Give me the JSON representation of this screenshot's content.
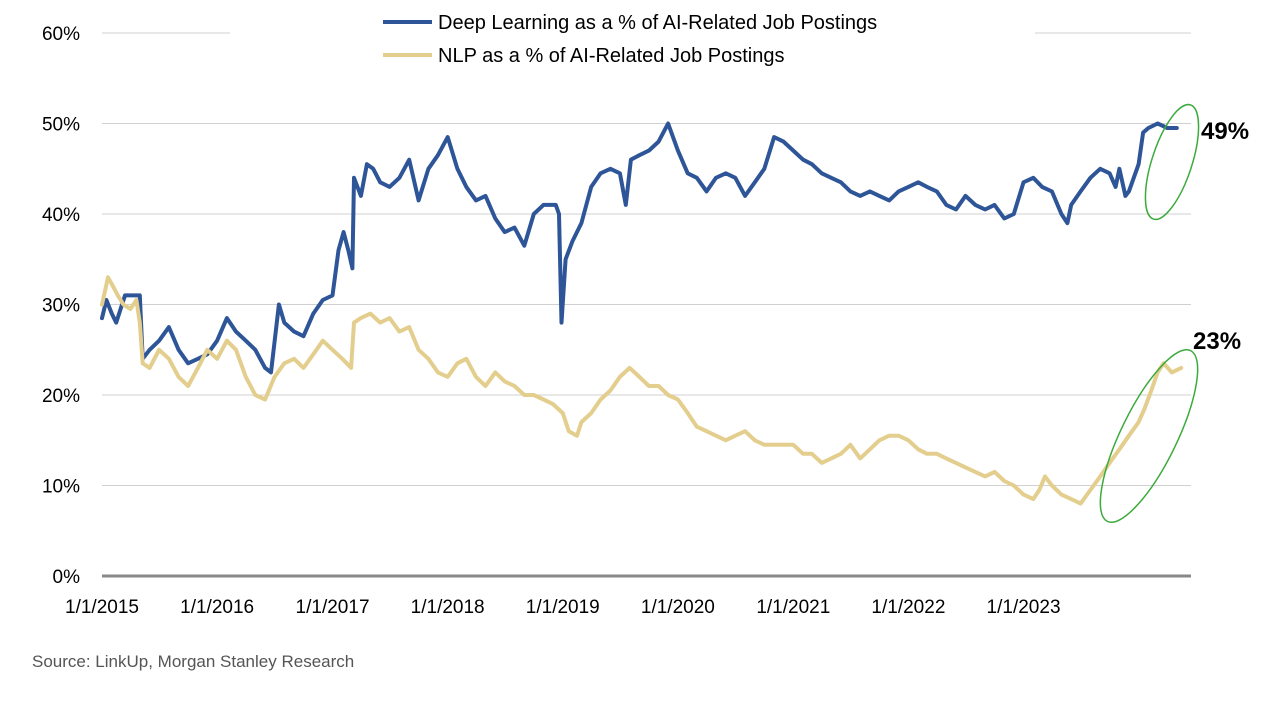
{
  "chart_data": {
    "type": "line",
    "title": "",
    "xlabel": "",
    "ylabel": "",
    "ylim": [
      0,
      60
    ],
    "y_ticks": [
      0,
      10,
      20,
      30,
      40,
      50,
      60
    ],
    "y_tick_labels": [
      "0%",
      "10%",
      "20%",
      "30%",
      "40%",
      "50%",
      "60%"
    ],
    "x_range": [
      "2015-01-01",
      "2024-06-15"
    ],
    "x_tick_labels": [
      "1/1/2015",
      "1/1/2016",
      "1/1/2017",
      "1/1/2018",
      "1/1/2019",
      "1/1/2020",
      "1/1/2021",
      "1/1/2022",
      "1/1/2023"
    ],
    "grid": true,
    "legend_position": "top",
    "series": [
      {
        "name": "Deep Learning as a % of AI-Related Job Postings",
        "color": "#2E5597",
        "points": [
          [
            "2015-01-01",
            28.5
          ],
          [
            "2015-01-15",
            30.5
          ],
          [
            "2015-02-01",
            29
          ],
          [
            "2015-02-15",
            28
          ],
          [
            "2015-03-01",
            29.5
          ],
          [
            "2015-03-15",
            31
          ],
          [
            "2015-04-01",
            31
          ],
          [
            "2015-04-15",
            31
          ],
          [
            "2015-05-01",
            31
          ],
          [
            "2015-05-10",
            24
          ],
          [
            "2015-06-01",
            25
          ],
          [
            "2015-07-01",
            26
          ],
          [
            "2015-08-01",
            27.5
          ],
          [
            "2015-09-01",
            25
          ],
          [
            "2015-10-01",
            23.5
          ],
          [
            "2015-11-01",
            24
          ],
          [
            "2015-12-01",
            24.5
          ],
          [
            "2016-01-01",
            26
          ],
          [
            "2016-02-01",
            28.5
          ],
          [
            "2016-03-01",
            27
          ],
          [
            "2016-04-01",
            26
          ],
          [
            "2016-05-01",
            25
          ],
          [
            "2016-06-01",
            23
          ],
          [
            "2016-06-20",
            22.5
          ],
          [
            "2016-07-15",
            30
          ],
          [
            "2016-08-01",
            28
          ],
          [
            "2016-09-01",
            27
          ],
          [
            "2016-10-01",
            26.5
          ],
          [
            "2016-11-01",
            29
          ],
          [
            "2016-12-01",
            30.5
          ],
          [
            "2017-01-01",
            31
          ],
          [
            "2017-01-20",
            36
          ],
          [
            "2017-02-05",
            38
          ],
          [
            "2017-02-20",
            36
          ],
          [
            "2017-03-05",
            34
          ],
          [
            "2017-03-10",
            44
          ],
          [
            "2017-04-01",
            42
          ],
          [
            "2017-04-20",
            45.5
          ],
          [
            "2017-05-10",
            45
          ],
          [
            "2017-06-01",
            43.5
          ],
          [
            "2017-07-01",
            43
          ],
          [
            "2017-08-01",
            44
          ],
          [
            "2017-09-01",
            46
          ],
          [
            "2017-10-01",
            41.5
          ],
          [
            "2017-11-01",
            45
          ],
          [
            "2017-12-01",
            46.5
          ],
          [
            "2018-01-01",
            48.5
          ],
          [
            "2018-02-01",
            45
          ],
          [
            "2018-03-01",
            43
          ],
          [
            "2018-04-01",
            41.5
          ],
          [
            "2018-05-01",
            42
          ],
          [
            "2018-06-01",
            39.5
          ],
          [
            "2018-07-01",
            38
          ],
          [
            "2018-08-01",
            38.5
          ],
          [
            "2018-09-01",
            36.5
          ],
          [
            "2018-10-01",
            40
          ],
          [
            "2018-11-01",
            41
          ],
          [
            "2018-12-10",
            41
          ],
          [
            "2018-12-20",
            40
          ],
          [
            "2018-12-28",
            28
          ],
          [
            "2019-01-10",
            35
          ],
          [
            "2019-02-01",
            37
          ],
          [
            "2019-03-01",
            39
          ],
          [
            "2019-04-01",
            43
          ],
          [
            "2019-05-01",
            44.5
          ],
          [
            "2019-06-01",
            45
          ],
          [
            "2019-07-01",
            44.5
          ],
          [
            "2019-07-20",
            41
          ],
          [
            "2019-08-05",
            46
          ],
          [
            "2019-09-01",
            46.5
          ],
          [
            "2019-10-01",
            47
          ],
          [
            "2019-11-01",
            48
          ],
          [
            "2019-12-01",
            50
          ],
          [
            "2020-01-01",
            47
          ],
          [
            "2020-02-01",
            44.5
          ],
          [
            "2020-03-01",
            44
          ],
          [
            "2020-04-01",
            42.5
          ],
          [
            "2020-05-01",
            44
          ],
          [
            "2020-06-01",
            44.5
          ],
          [
            "2020-07-01",
            44
          ],
          [
            "2020-08-01",
            42
          ],
          [
            "2020-09-01",
            43.5
          ],
          [
            "2020-10-01",
            45
          ],
          [
            "2020-11-01",
            48.5
          ],
          [
            "2020-12-01",
            48
          ],
          [
            "2021-01-01",
            47
          ],
          [
            "2021-02-01",
            46
          ],
          [
            "2021-03-01",
            45.5
          ],
          [
            "2021-04-01",
            44.5
          ],
          [
            "2021-05-01",
            44
          ],
          [
            "2021-06-01",
            43.5
          ],
          [
            "2021-07-01",
            42.5
          ],
          [
            "2021-08-01",
            42
          ],
          [
            "2021-09-01",
            42.5
          ],
          [
            "2021-10-01",
            42
          ],
          [
            "2021-11-01",
            41.5
          ],
          [
            "2021-12-01",
            42.5
          ],
          [
            "2022-01-01",
            43
          ],
          [
            "2022-02-01",
            43.5
          ],
          [
            "2022-03-01",
            43
          ],
          [
            "2022-04-01",
            42.5
          ],
          [
            "2022-05-01",
            41
          ],
          [
            "2022-06-01",
            40.5
          ],
          [
            "2022-07-01",
            42
          ],
          [
            "2022-08-01",
            41
          ],
          [
            "2022-09-01",
            40.5
          ],
          [
            "2022-10-01",
            41
          ],
          [
            "2022-11-01",
            39.5
          ],
          [
            "2022-12-01",
            40
          ],
          [
            "2023-01-01",
            43.5
          ],
          [
            "2023-02-01",
            44
          ],
          [
            "2023-03-01",
            43
          ],
          [
            "2023-04-01",
            42.5
          ],
          [
            "2023-05-01",
            40
          ],
          [
            "2023-05-20",
            39
          ],
          [
            "2023-06-01",
            41
          ],
          [
            "2023-07-01",
            42.5
          ],
          [
            "2023-08-01",
            44
          ],
          [
            "2023-09-01",
            45
          ],
          [
            "2023-10-01",
            44.5
          ],
          [
            "2023-10-20",
            43
          ],
          [
            "2023-11-01",
            45
          ],
          [
            "2023-11-20",
            42
          ],
          [
            "2023-12-01",
            42.5
          ],
          [
            "2024-01-01",
            45.5
          ],
          [
            "2024-01-15",
            49
          ],
          [
            "2024-02-01",
            49.5
          ],
          [
            "2024-03-01",
            50
          ],
          [
            "2024-04-01",
            49.5
          ],
          [
            "2024-05-01",
            49.5
          ]
        ]
      },
      {
        "name": "NLP as a % of AI-Related Job Postings",
        "color": "#E3CE8E",
        "points": [
          [
            "2015-01-01",
            30
          ],
          [
            "2015-01-20",
            33
          ],
          [
            "2015-02-05",
            32
          ],
          [
            "2015-02-20",
            31
          ],
          [
            "2015-03-10",
            30
          ],
          [
            "2015-04-01",
            29.5
          ],
          [
            "2015-04-20",
            30.5
          ],
          [
            "2015-05-01",
            28
          ],
          [
            "2015-05-10",
            23.5
          ],
          [
            "2015-06-01",
            23
          ],
          [
            "2015-07-01",
            25
          ],
          [
            "2015-08-01",
            24
          ],
          [
            "2015-09-01",
            22
          ],
          [
            "2015-10-01",
            21
          ],
          [
            "2015-11-01",
            23
          ],
          [
            "2015-12-01",
            25
          ],
          [
            "2016-01-01",
            24
          ],
          [
            "2016-02-01",
            26
          ],
          [
            "2016-03-01",
            25
          ],
          [
            "2016-04-01",
            22
          ],
          [
            "2016-05-01",
            20
          ],
          [
            "2016-06-01",
            19.5
          ],
          [
            "2016-07-01",
            22
          ],
          [
            "2016-08-01",
            23.5
          ],
          [
            "2016-09-01",
            24
          ],
          [
            "2016-10-01",
            23
          ],
          [
            "2016-11-01",
            24.5
          ],
          [
            "2016-12-01",
            26
          ],
          [
            "2017-01-01",
            25
          ],
          [
            "2017-02-01",
            24
          ],
          [
            "2017-03-01",
            23
          ],
          [
            "2017-03-10",
            28
          ],
          [
            "2017-04-01",
            28.5
          ],
          [
            "2017-05-01",
            29
          ],
          [
            "2017-06-01",
            28
          ],
          [
            "2017-07-01",
            28.5
          ],
          [
            "2017-08-01",
            27
          ],
          [
            "2017-09-01",
            27.5
          ],
          [
            "2017-10-01",
            25
          ],
          [
            "2017-11-01",
            24
          ],
          [
            "2017-12-01",
            22.5
          ],
          [
            "2018-01-01",
            22
          ],
          [
            "2018-02-01",
            23.5
          ],
          [
            "2018-03-01",
            24
          ],
          [
            "2018-04-01",
            22
          ],
          [
            "2018-05-01",
            21
          ],
          [
            "2018-06-01",
            22.5
          ],
          [
            "2018-07-01",
            21.5
          ],
          [
            "2018-08-01",
            21
          ],
          [
            "2018-09-01",
            20
          ],
          [
            "2018-10-01",
            20
          ],
          [
            "2018-11-01",
            19.5
          ],
          [
            "2018-12-01",
            19
          ],
          [
            "2019-01-01",
            18
          ],
          [
            "2019-01-20",
            16
          ],
          [
            "2019-02-15",
            15.5
          ],
          [
            "2019-03-01",
            17
          ],
          [
            "2019-04-01",
            18
          ],
          [
            "2019-05-01",
            19.5
          ],
          [
            "2019-06-01",
            20.5
          ],
          [
            "2019-07-01",
            22
          ],
          [
            "2019-08-01",
            23
          ],
          [
            "2019-09-01",
            22
          ],
          [
            "2019-10-01",
            21
          ],
          [
            "2019-11-01",
            21
          ],
          [
            "2019-12-01",
            20
          ],
          [
            "2020-01-01",
            19.5
          ],
          [
            "2020-02-01",
            18
          ],
          [
            "2020-03-01",
            16.5
          ],
          [
            "2020-04-01",
            16
          ],
          [
            "2020-05-01",
            15.5
          ],
          [
            "2020-06-01",
            15
          ],
          [
            "2020-07-01",
            15.5
          ],
          [
            "2020-08-01",
            16
          ],
          [
            "2020-09-01",
            15
          ],
          [
            "2020-10-01",
            14.5
          ],
          [
            "2020-11-01",
            14.5
          ],
          [
            "2020-12-01",
            14.5
          ],
          [
            "2021-01-01",
            14.5
          ],
          [
            "2021-02-01",
            13.5
          ],
          [
            "2021-03-01",
            13.5
          ],
          [
            "2021-04-01",
            12.5
          ],
          [
            "2021-05-01",
            13
          ],
          [
            "2021-06-01",
            13.5
          ],
          [
            "2021-07-01",
            14.5
          ],
          [
            "2021-08-01",
            13
          ],
          [
            "2021-09-01",
            14
          ],
          [
            "2021-10-01",
            15
          ],
          [
            "2021-11-01",
            15.5
          ],
          [
            "2021-12-01",
            15.5
          ],
          [
            "2022-01-01",
            15
          ],
          [
            "2022-02-01",
            14
          ],
          [
            "2022-03-01",
            13.5
          ],
          [
            "2022-04-01",
            13.5
          ],
          [
            "2022-05-01",
            13
          ],
          [
            "2022-06-01",
            12.5
          ],
          [
            "2022-07-01",
            12
          ],
          [
            "2022-08-01",
            11.5
          ],
          [
            "2022-09-01",
            11
          ],
          [
            "2022-10-01",
            11.5
          ],
          [
            "2022-11-01",
            10.5
          ],
          [
            "2022-12-01",
            10
          ],
          [
            "2023-01-01",
            9
          ],
          [
            "2023-02-01",
            8.5
          ],
          [
            "2023-02-20",
            9.5
          ],
          [
            "2023-03-10",
            11
          ],
          [
            "2023-04-01",
            10
          ],
          [
            "2023-05-01",
            9
          ],
          [
            "2023-06-01",
            8.5
          ],
          [
            "2023-07-01",
            8
          ],
          [
            "2023-08-01",
            9.5
          ],
          [
            "2023-09-01",
            11
          ],
          [
            "2023-10-01",
            12.5
          ],
          [
            "2023-11-01",
            14
          ],
          [
            "2023-12-01",
            15.5
          ],
          [
            "2024-01-01",
            17
          ],
          [
            "2024-01-20",
            18.5
          ],
          [
            "2024-02-10",
            20.5
          ],
          [
            "2024-03-01",
            22.5
          ],
          [
            "2024-03-20",
            23.5
          ],
          [
            "2024-04-15",
            22.5
          ],
          [
            "2024-05-15",
            23
          ]
        ]
      }
    ],
    "annotations": [
      {
        "label": "49%",
        "series": 0
      },
      {
        "label": "23%",
        "series": 1
      }
    ],
    "highlight_color": "#3CAA3C"
  },
  "source": "Source: LinkUp, Morgan Stanley Research"
}
